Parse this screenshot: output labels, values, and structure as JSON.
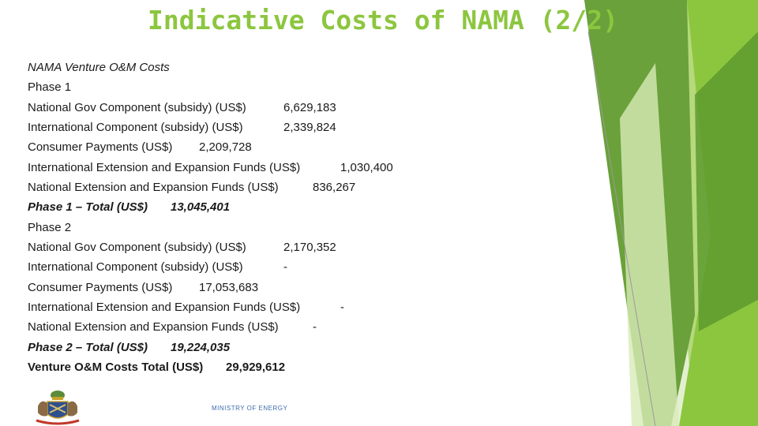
{
  "title": "Indicative Costs of NAMA (2/2)",
  "heading": "NAMA Venture O&M Costs",
  "phase1": {
    "label": "Phase 1",
    "rows": [
      {
        "label": "National Gov Component (subsidy) (US$)",
        "value": "6,629,183"
      },
      {
        "label": "International Component (subsidy) (US$)",
        "value": "2,339,824"
      },
      {
        "label": "Consumer Payments (US$)",
        "value": "2,209,728"
      },
      {
        "label": "International Extension and Expansion Funds (US$)",
        "value": "1,030,400"
      },
      {
        "label": "National Extension and Expansion Funds (US$)",
        "value": "836,267"
      }
    ],
    "total_label": "Phase 1 – Total (US$)",
    "total_value": "13,045,401"
  },
  "phase2": {
    "label": "Phase 2",
    "rows": [
      {
        "label": "National Gov Component (subsidy) (US$)",
        "value": "2,170,352"
      },
      {
        "label": "International Component (subsidy) (US$)",
        "value": "-"
      },
      {
        "label": "Consumer Payments (US$)",
        "value": "17,053,683"
      },
      {
        "label": "International Extension and Expansion Funds (US$)",
        "value": "-"
      },
      {
        "label": "National Extension and Expansion Funds (US$)",
        "value": "-"
      }
    ],
    "total_label": "Phase 2 – Total (US$)",
    "total_value": "19,224,035"
  },
  "grand_total": {
    "label": "Venture O&M Costs Total (US$)",
    "value": "29,929,612"
  },
  "footer": "MINISTRY OF ENERGY",
  "colors": {
    "title": "#8cc63f",
    "accent_dark": "#4a8f2a",
    "accent": "#8cc63f",
    "accent_light": "#cfe7a8"
  }
}
